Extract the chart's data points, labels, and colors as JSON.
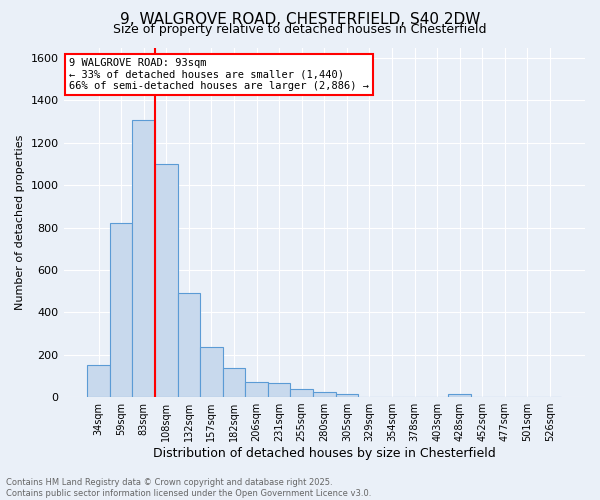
{
  "title1": "9, WALGROVE ROAD, CHESTERFIELD, S40 2DW",
  "title2": "Size of property relative to detached houses in Chesterfield",
  "xlabel": "Distribution of detached houses by size in Chesterfield",
  "ylabel": "Number of detached properties",
  "bar_labels": [
    "34sqm",
    "59sqm",
    "83sqm",
    "108sqm",
    "132sqm",
    "157sqm",
    "182sqm",
    "206sqm",
    "231sqm",
    "255sqm",
    "280sqm",
    "305sqm",
    "329sqm",
    "354sqm",
    "378sqm",
    "403sqm",
    "428sqm",
    "452sqm",
    "477sqm",
    "501sqm",
    "526sqm"
  ],
  "bar_values": [
    150,
    820,
    1310,
    1100,
    490,
    235,
    135,
    70,
    68,
    38,
    25,
    13,
    0,
    0,
    0,
    0,
    13,
    0,
    0,
    0,
    0
  ],
  "bar_color": "#c8d9ed",
  "bar_edge_color": "#5b9bd5",
  "red_line_x": 2.5,
  "annotation_text": "9 WALGROVE ROAD: 93sqm\n← 33% of detached houses are smaller (1,440)\n66% of semi-detached houses are larger (2,886) →",
  "annotation_box_color": "white",
  "annotation_box_edge_color": "red",
  "ylim": [
    0,
    1650
  ],
  "yticks": [
    0,
    200,
    400,
    600,
    800,
    1000,
    1200,
    1400,
    1600
  ],
  "footer1": "Contains HM Land Registry data © Crown copyright and database right 2025.",
  "footer2": "Contains public sector information licensed under the Open Government Licence v3.0.",
  "bg_color": "#eaf0f8",
  "plot_bg_color": "#eaf0f8",
  "grid_color": "#ffffff",
  "title1_fontsize": 11,
  "title2_fontsize": 9,
  "ylabel_fontsize": 8,
  "xlabel_fontsize": 9,
  "tick_fontsize": 7,
  "ytick_fontsize": 8,
  "footer_fontsize": 6,
  "ann_fontsize": 7.5
}
